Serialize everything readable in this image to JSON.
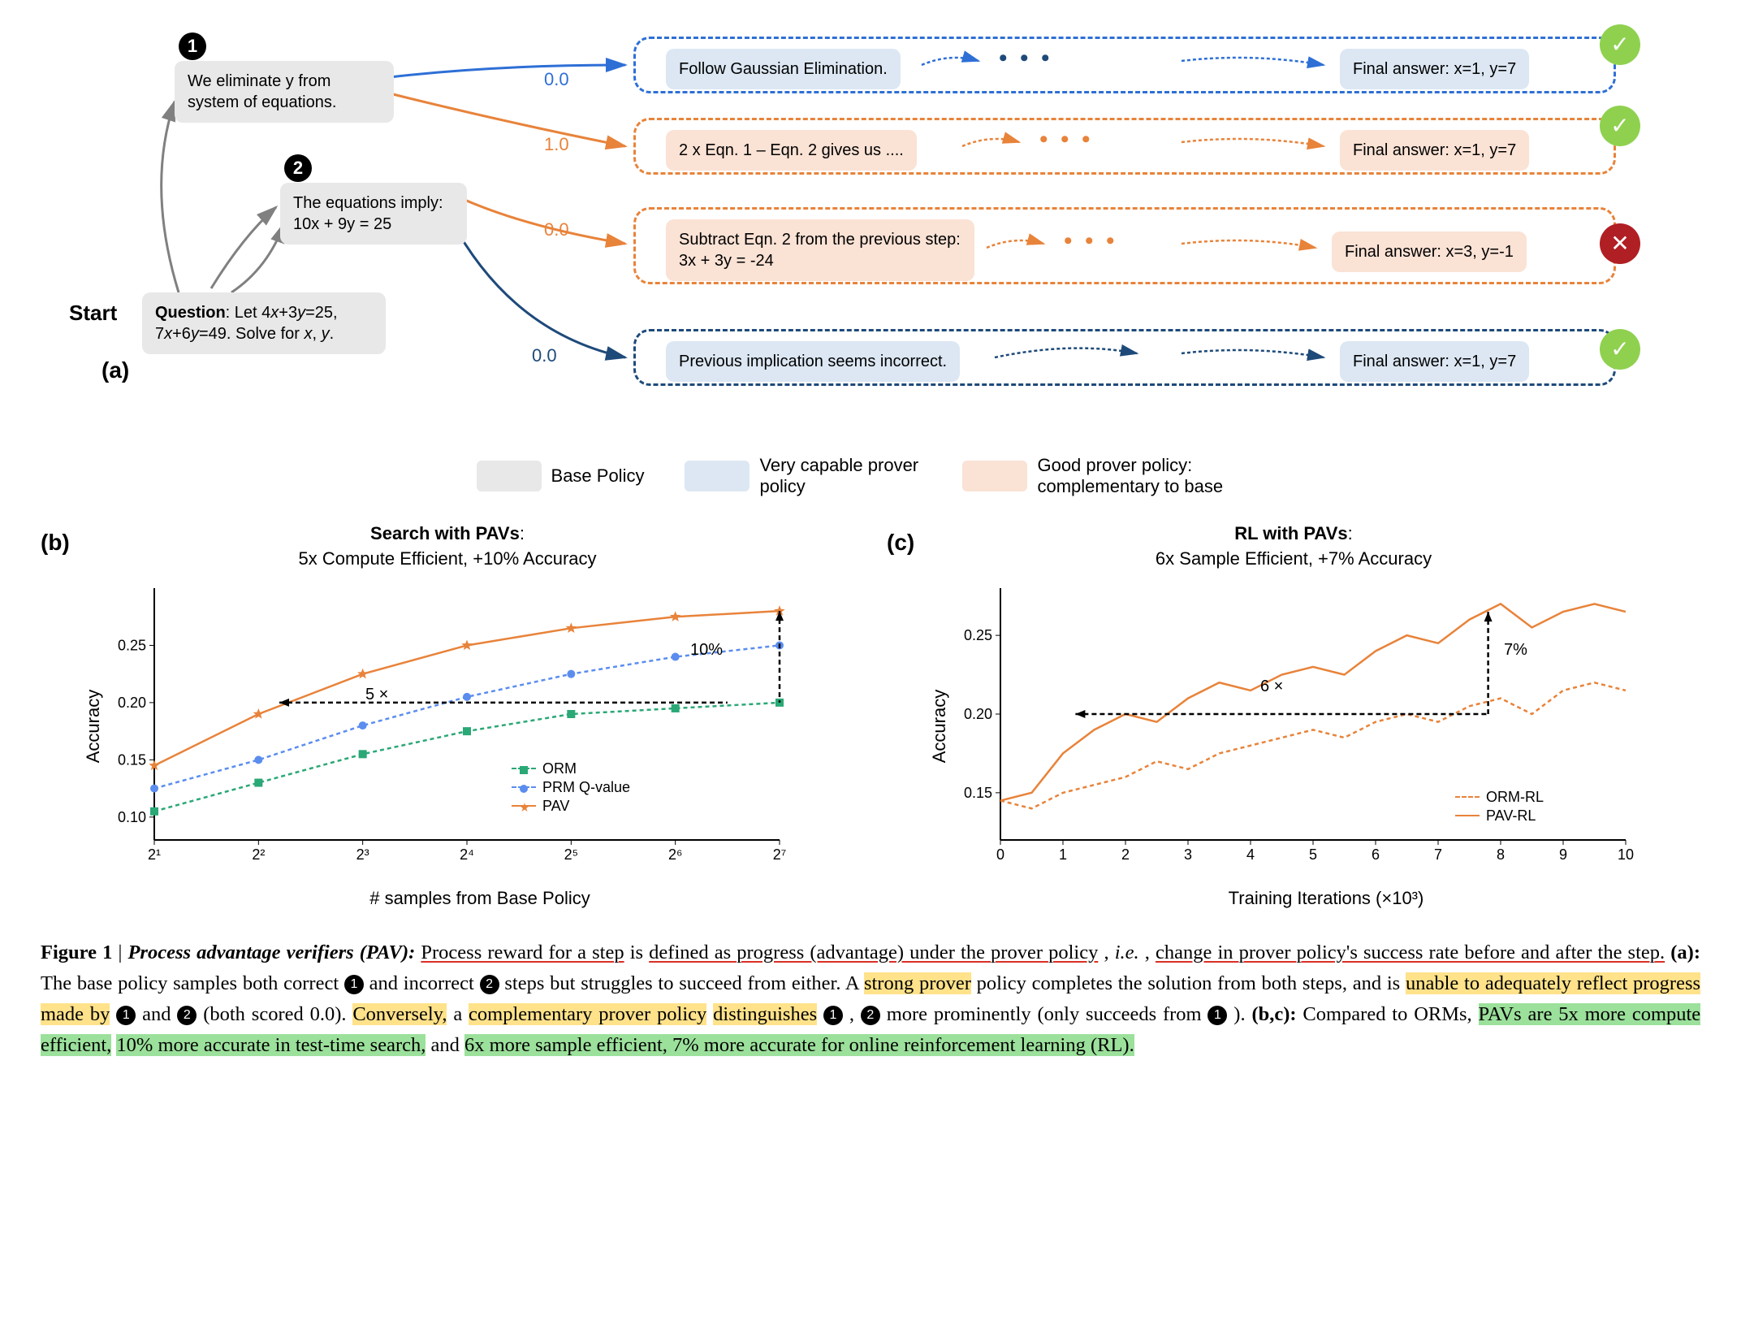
{
  "panel_a": {
    "label": "(a)",
    "start_label": "Start",
    "question_node": "Question: Let 4x+3y=25, 7x+6y=49. Solve for x, y.",
    "node1": {
      "num": "1",
      "text": "We eliminate y from system of equations."
    },
    "node2": {
      "num": "2",
      "text": "The equations imply:\n10x + 9y = 25"
    },
    "scores": {
      "s1": "0.0",
      "s2": "1.0",
      "s3": "0.0",
      "s4": "0.0"
    },
    "paths": {
      "p1_step": "Follow Gaussian Elimination.",
      "p1_final": "Final answer: x=1, y=7",
      "p2_step": "2 x Eqn. 1 – Eqn. 2 gives us ....",
      "p2_final": "Final answer: x=1, y=7",
      "p3_step": "Subtract Eqn. 2 from the previous step: 3x + 3y = -24",
      "p3_final": "Final answer: x=3, y=-1",
      "p4_step": "Previous implication seems incorrect.",
      "p4_final": "Final answer: x=1, y=7"
    },
    "colors": {
      "blue_border": "#2e6fd6",
      "orange_border": "#e8833a",
      "darkblue_border": "#1e4a7a",
      "gray_arrow": "#808080"
    }
  },
  "legend": {
    "base": {
      "label": "Base Policy",
      "color": "#e8e8e8"
    },
    "capable": {
      "label": "Very capable prover policy",
      "color": "#dce7f3"
    },
    "good": {
      "label": "Good prover policy: complementary to base",
      "color": "#fae2d5"
    }
  },
  "chart_b": {
    "label": "(b)",
    "title_bold": "Search with PAVs",
    "title_sub": "5x Compute Efficient, +10% Accuracy",
    "ylabel": "Accuracy",
    "xlabel": "# samples from Base Policy",
    "yticks": [
      "0.10",
      "0.15",
      "0.20",
      "0.25"
    ],
    "xticks": [
      "2¹",
      "2²",
      "2³",
      "2⁴",
      "2⁵",
      "2⁶",
      "2⁷"
    ],
    "annotation_5x": "5 ×",
    "annotation_10": "10%",
    "series": {
      "orm": {
        "label": "ORM",
        "color": "#2aa876",
        "values": [
          0.105,
          0.13,
          0.155,
          0.175,
          0.19,
          0.195,
          0.2
        ]
      },
      "prm": {
        "label": "PRM Q-value",
        "color": "#5b8def",
        "values": [
          0.125,
          0.15,
          0.18,
          0.205,
          0.225,
          0.24,
          0.25
        ]
      },
      "pav": {
        "label": "PAV",
        "color": "#e8833a",
        "values": [
          0.145,
          0.19,
          0.225,
          0.25,
          0.265,
          0.275,
          0.28
        ]
      }
    }
  },
  "chart_c": {
    "label": "(c)",
    "title_bold": "RL with PAVs",
    "title_sub": "6x Sample Efficient, +7% Accuracy",
    "ylabel": "Accuracy",
    "xlabel": "Training Iterations (×10³)",
    "yticks": [
      "0.15",
      "0.20",
      "0.25"
    ],
    "xticks": [
      "0",
      "1",
      "2",
      "3",
      "4",
      "5",
      "6",
      "7",
      "8",
      "9",
      "10"
    ],
    "annotation_6x": "6 ×",
    "annotation_7": "7%",
    "series": {
      "orm_rl": {
        "label": "ORM-RL",
        "color": "#e8833a",
        "values": [
          0.145,
          0.14,
          0.15,
          0.155,
          0.16,
          0.17,
          0.165,
          0.175,
          0.18,
          0.185,
          0.19,
          0.185,
          0.195,
          0.2,
          0.195,
          0.205,
          0.21,
          0.2,
          0.215,
          0.22,
          0.215
        ]
      },
      "pav_rl": {
        "label": "PAV-RL",
        "color": "#e8833a",
        "values": [
          0.145,
          0.15,
          0.175,
          0.19,
          0.2,
          0.195,
          0.21,
          0.22,
          0.215,
          0.225,
          0.23,
          0.225,
          0.24,
          0.25,
          0.245,
          0.26,
          0.27,
          0.255,
          0.265,
          0.27,
          0.265
        ]
      }
    }
  },
  "caption": {
    "fig_label": "Figure 1",
    "title": "Process advantage verifiers (PAV):",
    "t1": "Process reward for a step",
    "t2": " is ",
    "t3": "defined as progress (advantage) under the prover policy",
    "t4": ", ",
    "t5_em": "i.e.",
    "t5b": ", ",
    "t6": "change in prover policy's success rate before and after the step.",
    "t7": " ",
    "t8": "(a):",
    "t9": " The base policy samples both correct ",
    "t10": " and incorrect ",
    "t11": " steps but struggles to succeed from either.  A ",
    "t12": "strong prover",
    "t13": " policy completes the solution from both steps, and is ",
    "t14": "unable to adequately reflect progress made by",
    "t14b": " ",
    "t15": " and ",
    "t16": " (both scored 0.0). ",
    "t17": "Conversely,",
    "t17b": " a ",
    "t18": "complementary prover policy",
    "t18b": " ",
    "t19": "distinguishes",
    "t20": " ",
    "t21": ", ",
    "t22": "  more prominently (only succeeds from ",
    "t23": "). ",
    "t24": "(b,c):",
    "t25": " Compared to ORMs, ",
    "t26": "PAVs are 5x more compute efficient,",
    "t26b": " ",
    "t27": "10% more accurate in test-time search,",
    "t28": " and ",
    "t29": "6x more sample efficient, 7% more accurate for online reinforcement learning (RL)."
  }
}
